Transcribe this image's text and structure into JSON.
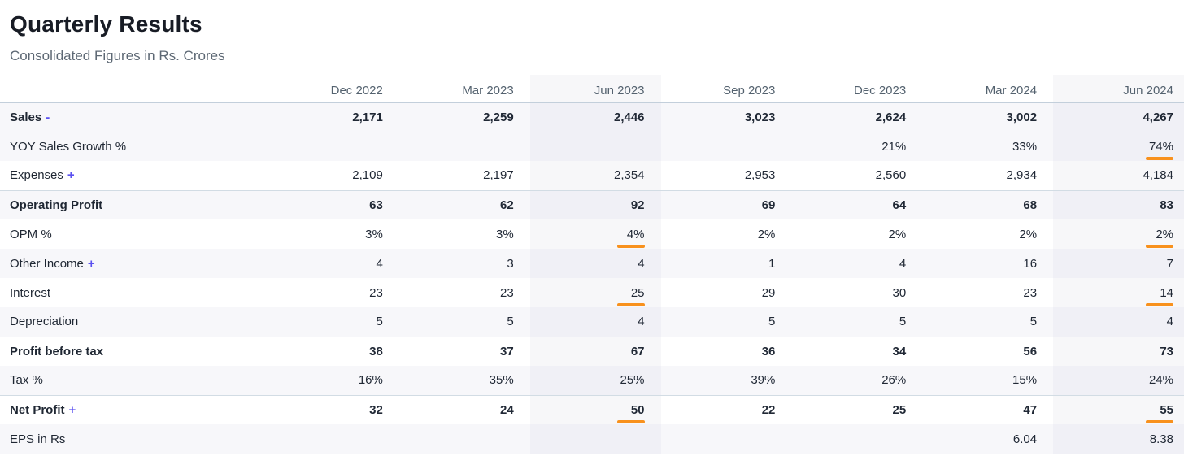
{
  "header": {
    "title": "Quarterly Results",
    "subtitle": "Consolidated Figures in Rs. Crores"
  },
  "table": {
    "columns": [
      "Dec 2022",
      "Mar 2023",
      "Jun 2023",
      "Sep 2023",
      "Dec 2023",
      "Mar 2024",
      "Jun 2024"
    ],
    "highlighted_columns": [
      "Jun 2023",
      "Jun 2024"
    ],
    "rows": [
      {
        "label": "Sales",
        "toggle": "-",
        "bold": true,
        "values": [
          "2,171",
          "2,259",
          "2,446",
          "3,023",
          "2,624",
          "3,002",
          "4,267"
        ]
      },
      {
        "label": "YOY Sales Growth %",
        "values": [
          "",
          "",
          "",
          "",
          "21%",
          "33%",
          "74%"
        ],
        "orange_marker_cols": [
          "Jun 2024"
        ]
      },
      {
        "label": "Expenses",
        "toggle": "+",
        "values": [
          "2,109",
          "2,197",
          "2,354",
          "2,953",
          "2,560",
          "2,934",
          "4,184"
        ]
      },
      {
        "label": "Operating Profit",
        "bold": true,
        "values": [
          "63",
          "62",
          "92",
          "69",
          "64",
          "68",
          "83"
        ]
      },
      {
        "label": "OPM %",
        "values": [
          "3%",
          "3%",
          "4%",
          "2%",
          "2%",
          "2%",
          "2%"
        ],
        "orange_marker_cols": [
          "Jun 2023",
          "Jun 2024"
        ]
      },
      {
        "label": "Other Income",
        "toggle": "+",
        "values": [
          "4",
          "3",
          "4",
          "1",
          "4",
          "16",
          "7"
        ]
      },
      {
        "label": "Interest",
        "values": [
          "23",
          "23",
          "25",
          "29",
          "30",
          "23",
          "14"
        ],
        "orange_marker_cols": [
          "Jun 2023",
          "Jun 2024"
        ]
      },
      {
        "label": "Depreciation",
        "values": [
          "5",
          "5",
          "4",
          "5",
          "5",
          "5",
          "4"
        ]
      },
      {
        "label": "Profit before tax",
        "bold": true,
        "values": [
          "38",
          "37",
          "67",
          "36",
          "34",
          "56",
          "73"
        ]
      },
      {
        "label": "Tax %",
        "values": [
          "16%",
          "35%",
          "25%",
          "39%",
          "26%",
          "15%",
          "24%"
        ]
      },
      {
        "label": "Net Profit",
        "toggle": "+",
        "bold": true,
        "values": [
          "32",
          "24",
          "50",
          "22",
          "25",
          "47",
          "55"
        ],
        "orange_marker_cols": [
          "Jun 2023",
          "Jun 2024"
        ]
      },
      {
        "label": "EPS in Rs",
        "values": [
          "",
          "",
          "",
          "",
          "",
          "6.04",
          "8.38"
        ]
      }
    ]
  },
  "colors": {
    "accent_orange": "#f8911d",
    "toggle_purple": "#5b51f0",
    "stripe_row": "#f7f7fa",
    "column_highlight": "#f0f0f6",
    "header_border": "#c3cfdb"
  }
}
